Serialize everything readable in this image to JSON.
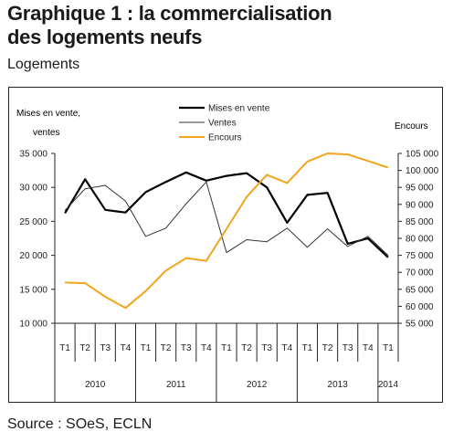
{
  "header": {
    "title_line1": "Graphique 1 : la commercialisation",
    "title_line2": "des logements neufs",
    "unit": "Logements"
  },
  "footer": {
    "source": "Source : SOeS, ECLN"
  },
  "colors": {
    "mises": "#000000",
    "ventes": "#333333",
    "encours": "#f2a51c"
  },
  "chart_data": {
    "type": "line",
    "left_axis_title_line1": "Mises en vente,",
    "left_axis_title_line2": "ventes",
    "right_axis_title": "Encours",
    "left_ylim": [
      10000,
      35000
    ],
    "left_ticks": [
      "35 000",
      "30 000",
      "25 000",
      "20 000",
      "15 000",
      "10 000"
    ],
    "right_ylim": [
      55000,
      105000
    ],
    "right_ticks": [
      "105 000",
      "100 000",
      "95 000",
      "90 000",
      "85 000",
      "80 000",
      "75 000",
      "70 000",
      "65 000",
      "60 000",
      "55 000"
    ],
    "quarters": [
      "T1",
      "T2",
      "T3",
      "T4",
      "T1",
      "T2",
      "T3",
      "T4",
      "T1",
      "T2",
      "T3",
      "T4",
      "T1",
      "T2",
      "T3",
      "T4",
      "T1"
    ],
    "years": [
      "2010",
      "2011",
      "2012",
      "2013",
      "2014"
    ],
    "legend_position": "top-center",
    "series": [
      {
        "name": "Mises en vente",
        "axis": "left",
        "values": [
          26200,
          31200,
          26700,
          26300,
          29300,
          30800,
          32200,
          31000,
          31700,
          32100,
          30000,
          24800,
          28900,
          29200,
          21700,
          22500,
          19700
        ]
      },
      {
        "name": "Ventes",
        "axis": "left",
        "values": [
          26600,
          29800,
          30300,
          28000,
          22800,
          24000,
          27600,
          30800,
          20400,
          22300,
          22000,
          24000,
          21200,
          23900,
          21300,
          22800,
          20000
        ]
      },
      {
        "name": "Encours",
        "axis": "right",
        "values": [
          67000,
          66800,
          62800,
          59500,
          64500,
          70500,
          74200,
          73400,
          82800,
          92200,
          98700,
          96300,
          102600,
          105000,
          104700,
          102800,
          100800
        ]
      }
    ]
  }
}
